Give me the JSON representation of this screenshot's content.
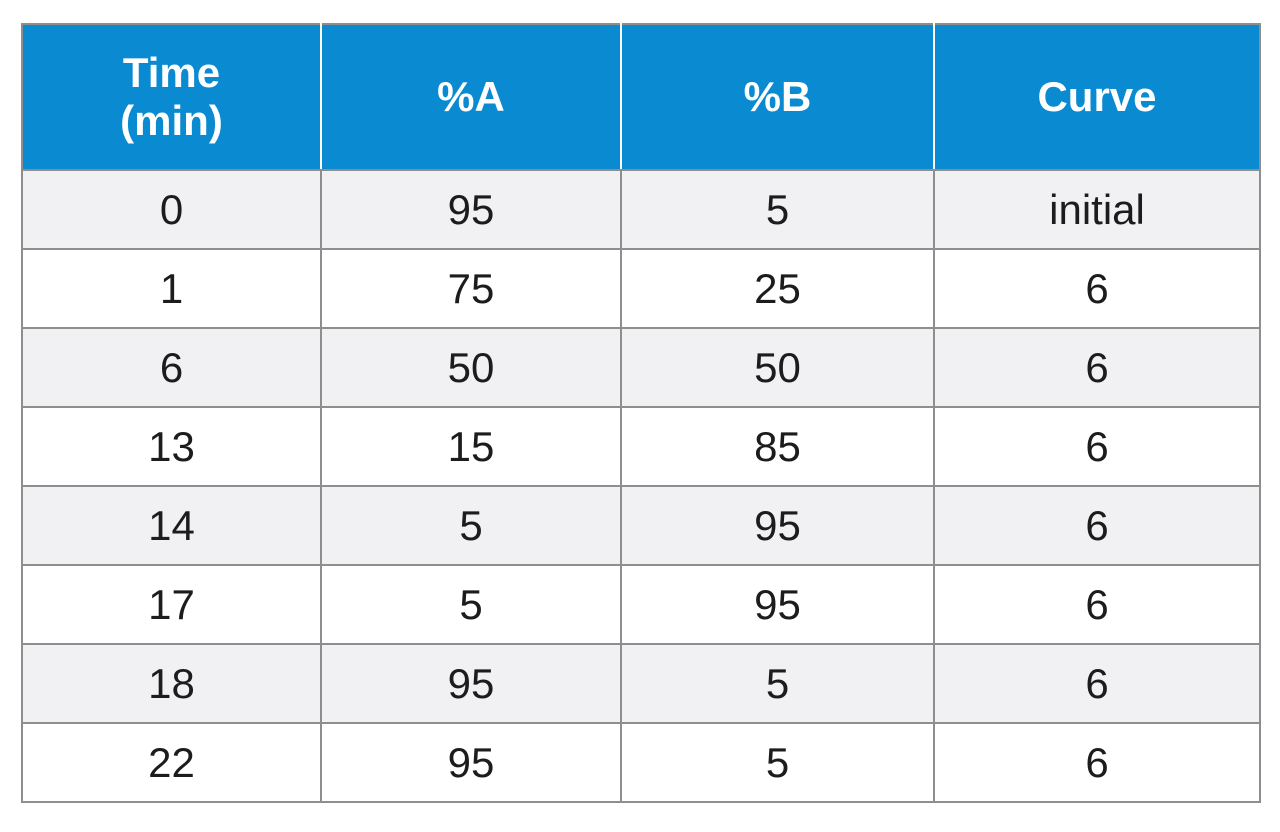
{
  "table": {
    "headers": {
      "time_line1": "Time",
      "time_line2": "(min)",
      "a": "%A",
      "b": "%B",
      "curve": "Curve"
    },
    "rows": [
      {
        "time": "0",
        "a": "95",
        "b": "5",
        "curve": "initial"
      },
      {
        "time": "1",
        "a": "75",
        "b": "25",
        "curve": "6"
      },
      {
        "time": "6",
        "a": "50",
        "b": "50",
        "curve": "6"
      },
      {
        "time": "13",
        "a": "15",
        "b": "85",
        "curve": "6"
      },
      {
        "time": "14",
        "a": "5",
        "b": "95",
        "curve": "6"
      },
      {
        "time": "17",
        "a": "5",
        "b": "95",
        "curve": "6"
      },
      {
        "time": "18",
        "a": "95",
        "b": "5",
        "curve": "6"
      },
      {
        "time": "22",
        "a": "95",
        "b": "5",
        "curve": "6"
      }
    ],
    "colors": {
      "header_background": "#0a8ad0",
      "header_text": "#ffffff",
      "stripe_background": "#f1f1f3",
      "border": "#8e8e8e"
    }
  }
}
